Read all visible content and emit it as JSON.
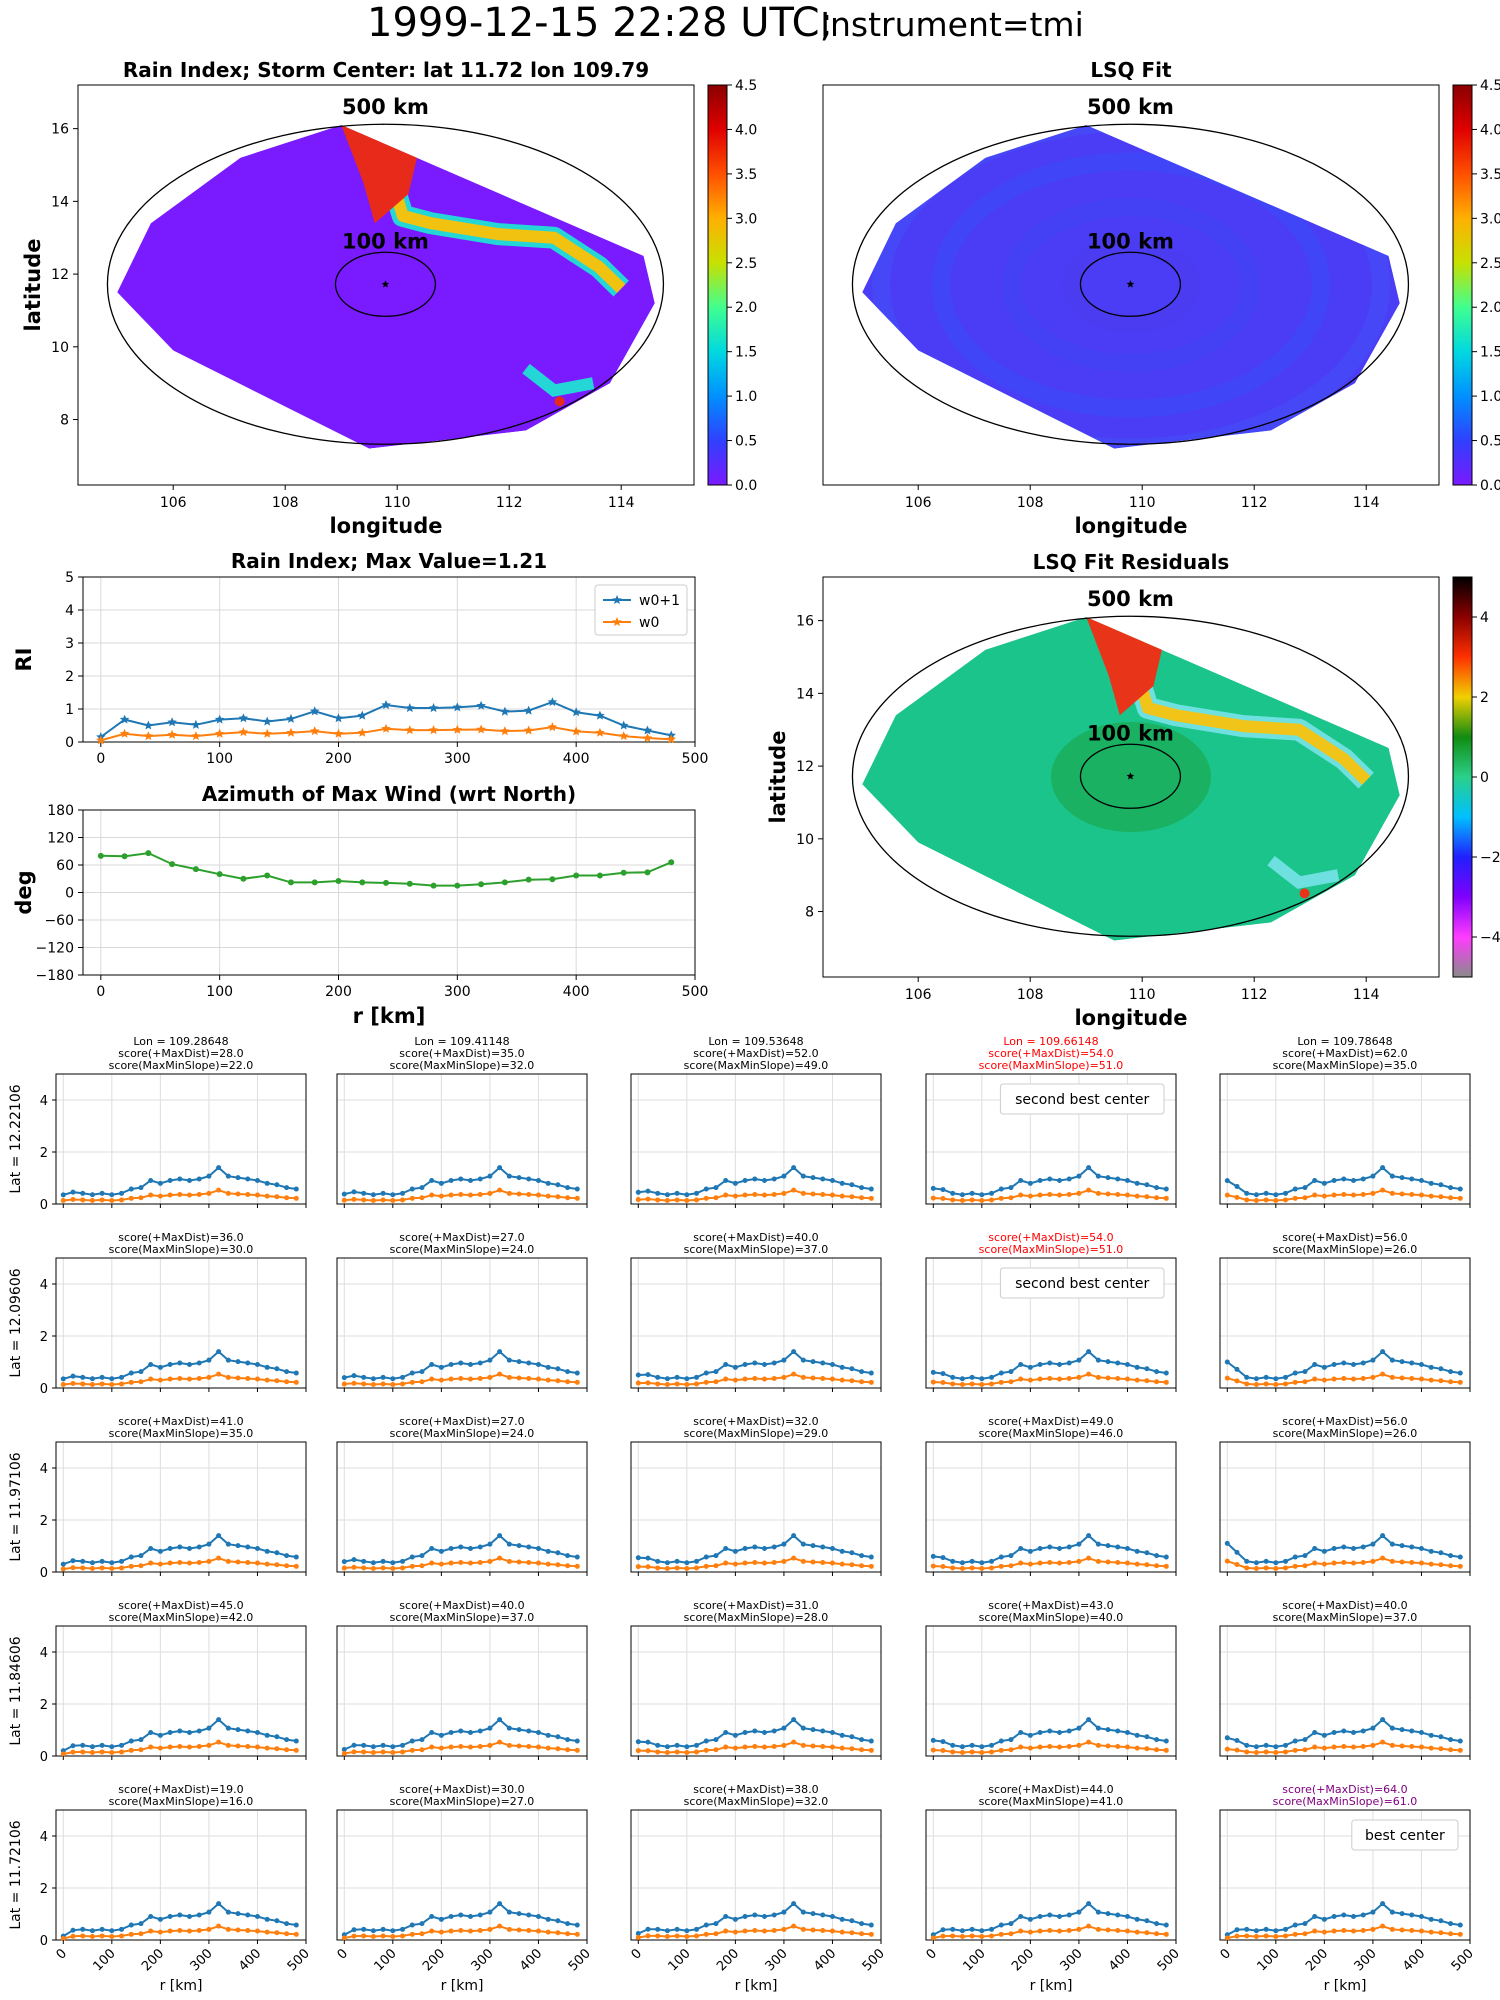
{
  "figure": {
    "title_main": "1999-12-15 22:28 UTC;",
    "title_instr": "Instrument=tmi"
  },
  "maps": [
    {
      "title": "Rain Index; Storm Center: lat 11.72 lon 109.79",
      "xlabel": "longitude",
      "ylabel": "latitude",
      "xticks": [
        "106",
        "108",
        "110",
        "112",
        "114"
      ],
      "yticks": [
        "8",
        "10",
        "12",
        "14",
        "16"
      ],
      "ring_labels": [
        "500 km",
        "100 km"
      ],
      "colorbar_ticks": [
        "0.0",
        "0.5",
        "1.0",
        "1.5",
        "2.0",
        "2.5",
        "3.0",
        "3.5",
        "4.0",
        "4.5"
      ],
      "field_color": "#7a1aff",
      "colormap": "rainbow"
    },
    {
      "title": "LSQ Fit",
      "xlabel": "longitude",
      "ylabel": "",
      "xticks": [
        "106",
        "108",
        "110",
        "112",
        "114"
      ],
      "yticks": [],
      "ring_labels": [
        "500 km",
        "100 km"
      ],
      "colorbar_ticks": [
        "0.0",
        "0.5",
        "1.0",
        "1.5",
        "2.0",
        "2.5",
        "3.0",
        "3.5",
        "4.0",
        "4.5"
      ],
      "field_color": "#4a3df5",
      "colormap": "rainbow"
    },
    {
      "title": "LSQ Fit Residuals",
      "xlabel": "longitude",
      "ylabel": "latitude",
      "xticks": [
        "106",
        "108",
        "110",
        "112",
        "114"
      ],
      "yticks": [
        "8",
        "10",
        "12",
        "14",
        "16"
      ],
      "ring_labels": [
        "500 km",
        "100 km"
      ],
      "colorbar_ticks": [
        "-4",
        "-2",
        "0",
        "2",
        "4"
      ],
      "field_color": "#1bc48a",
      "colormap": "diverging"
    }
  ],
  "chart_data": [
    {
      "type": "line",
      "title": "Rain Index; Max Value=1.21",
      "ylabel": "RI",
      "xlabel": "",
      "x": [
        0,
        20,
        40,
        60,
        80,
        100,
        120,
        140,
        160,
        180,
        200,
        220,
        240,
        260,
        280,
        300,
        320,
        340,
        360,
        380,
        400,
        420,
        440,
        460,
        480
      ],
      "xticks": [
        "0",
        "100",
        "200",
        "300",
        "400",
        "500"
      ],
      "yticks": [
        "0",
        "1",
        "2",
        "3",
        "4",
        "5"
      ],
      "xlim": [
        -15,
        500
      ],
      "ylim": [
        0,
        5
      ],
      "legend": "top-right",
      "grid": true,
      "series": [
        {
          "name": "w0+1",
          "color": "#1f77b4",
          "marker": "star",
          "values": [
            0.15,
            0.68,
            0.5,
            0.6,
            0.52,
            0.68,
            0.72,
            0.62,
            0.7,
            0.93,
            0.72,
            0.8,
            1.12,
            1.03,
            1.03,
            1.05,
            1.1,
            0.92,
            0.95,
            1.21,
            0.9,
            0.8,
            0.5,
            0.35,
            0.2
          ]
        },
        {
          "name": "w0",
          "color": "#ff7f0e",
          "marker": "star",
          "values": [
            0.05,
            0.25,
            0.18,
            0.22,
            0.18,
            0.25,
            0.3,
            0.25,
            0.28,
            0.33,
            0.25,
            0.28,
            0.4,
            0.36,
            0.36,
            0.37,
            0.38,
            0.33,
            0.35,
            0.45,
            0.32,
            0.28,
            0.18,
            0.12,
            0.08
          ]
        }
      ]
    },
    {
      "type": "line",
      "title": "Azimuth of Max Wind (wrt North)",
      "ylabel": "deg",
      "xlabel": "r [km]",
      "x": [
        0,
        20,
        40,
        60,
        80,
        100,
        120,
        140,
        160,
        180,
        200,
        220,
        240,
        260,
        280,
        300,
        320,
        340,
        360,
        380,
        400,
        420,
        440,
        460,
        480
      ],
      "xticks": [
        "0",
        "100",
        "200",
        "300",
        "400",
        "500"
      ],
      "yticks": [
        "180",
        "120",
        "60",
        "0",
        "−60",
        "−120",
        "−180"
      ],
      "xlim": [
        -15,
        500
      ],
      "ylim": [
        -180,
        180
      ],
      "grid": true,
      "series": [
        {
          "color": "#2ca02c",
          "values": [
            80,
            79,
            86,
            62,
            51,
            40,
            30,
            37,
            22,
            22,
            25,
            22,
            21,
            19,
            15,
            15,
            18,
            22,
            28,
            29,
            37,
            37,
            43,
            44,
            66
          ]
        }
      ]
    },
    {
      "type": "line",
      "grid_panels": true,
      "rows": 5,
      "cols": 5,
      "xlabel": "r [km]",
      "x": [
        0,
        20,
        40,
        60,
        80,
        100,
        120,
        140,
        160,
        180,
        200,
        220,
        240,
        260,
        280,
        300,
        320,
        340,
        360,
        380,
        400,
        420,
        440,
        460,
        480
      ],
      "xticks": [
        "0",
        "100",
        "200",
        "300",
        "400",
        "500"
      ],
      "yticks": [
        "0",
        "2",
        "4"
      ],
      "xlim": [
        -15,
        500
      ],
      "ylim": [
        0,
        5
      ],
      "series_colors": [
        "#1f77b4",
        "#ff7f0e"
      ],
      "row_labels": [
        "Lat = 12.22106",
        "Lat = 12.09606",
        "Lat = 11.97106",
        "Lat = 11.84606",
        "Lat = 11.72106"
      ],
      "panels": [
        {
          "lon": "Lon = 109.28648",
          "s1": "score(+MaxDist)=28.0",
          "s2": "score(MaxMinSlope)=22.0",
          "color": "#000000",
          "note": "",
          "base": 0.25,
          "amp": 1.0
        },
        {
          "lon": "Lon = 109.41148",
          "s1": "score(+MaxDist)=35.0",
          "s2": "score(MaxMinSlope)=32.0",
          "color": "#000000",
          "note": "",
          "base": 0.28,
          "amp": 1.0
        },
        {
          "lon": "Lon = 109.53648",
          "s1": "score(+MaxDist)=52.0",
          "s2": "score(MaxMinSlope)=49.0",
          "color": "#000000",
          "note": "",
          "base": 0.35,
          "amp": 1.0
        },
        {
          "lon": "Lon = 109.66148",
          "s1": "score(+MaxDist)=54.0",
          "s2": "score(MaxMinSlope)=51.0",
          "color": "#ff0000",
          "note": "second best center",
          "base": 0.5,
          "amp": 1.0
        },
        {
          "lon": "Lon = 109.78648",
          "s1": "score(+MaxDist)=62.0",
          "s2": "score(MaxMinSlope)=35.0",
          "color": "#000000",
          "note": "",
          "base": 0.8,
          "amp": 1.0
        },
        {
          "lon": "",
          "s1": "score(+MaxDist)=36.0",
          "s2": "score(MaxMinSlope)=30.0",
          "color": "#000000",
          "note": "",
          "base": 0.25,
          "amp": 1.0
        },
        {
          "lon": "",
          "s1": "score(+MaxDist)=27.0",
          "s2": "score(MaxMinSlope)=24.0",
          "color": "#000000",
          "note": "",
          "base": 0.3,
          "amp": 1.0
        },
        {
          "lon": "",
          "s1": "score(+MaxDist)=40.0",
          "s2": "score(MaxMinSlope)=37.0",
          "color": "#000000",
          "note": "",
          "base": 0.4,
          "amp": 1.0
        },
        {
          "lon": "",
          "s1": "score(+MaxDist)=54.0",
          "s2": "score(MaxMinSlope)=51.0",
          "color": "#ff0000",
          "note": "second best center",
          "base": 0.5,
          "amp": 1.0
        },
        {
          "lon": "",
          "s1": "score(+MaxDist)=56.0",
          "s2": "score(MaxMinSlope)=26.0",
          "color": "#000000",
          "note": "",
          "base": 0.9,
          "amp": 1.0
        },
        {
          "lon": "",
          "s1": "score(+MaxDist)=41.0",
          "s2": "score(MaxMinSlope)=35.0",
          "color": "#000000",
          "note": "",
          "base": 0.2,
          "amp": 1.0
        },
        {
          "lon": "",
          "s1": "score(+MaxDist)=27.0",
          "s2": "score(MaxMinSlope)=24.0",
          "color": "#000000",
          "note": "",
          "base": 0.3,
          "amp": 1.0
        },
        {
          "lon": "",
          "s1": "score(+MaxDist)=32.0",
          "s2": "score(MaxMinSlope)=29.0",
          "color": "#000000",
          "note": "",
          "base": 0.45,
          "amp": 1.0
        },
        {
          "lon": "",
          "s1": "score(+MaxDist)=49.0",
          "s2": "score(MaxMinSlope)=46.0",
          "color": "#000000",
          "note": "",
          "base": 0.5,
          "amp": 1.0
        },
        {
          "lon": "",
          "s1": "score(+MaxDist)=56.0",
          "s2": "score(MaxMinSlope)=26.0",
          "color": "#000000",
          "note": "",
          "base": 1.0,
          "amp": 1.0
        },
        {
          "lon": "",
          "s1": "score(+MaxDist)=45.0",
          "s2": "score(MaxMinSlope)=42.0",
          "color": "#000000",
          "note": "",
          "base": 0.1,
          "amp": 1.0
        },
        {
          "lon": "",
          "s1": "score(+MaxDist)=40.0",
          "s2": "score(MaxMinSlope)=37.0",
          "color": "#000000",
          "note": "",
          "base": 0.15,
          "amp": 1.0
        },
        {
          "lon": "",
          "s1": "score(+MaxDist)=31.0",
          "s2": "score(MaxMinSlope)=28.0",
          "color": "#000000",
          "note": "",
          "base": 0.45,
          "amp": 1.0
        },
        {
          "lon": "",
          "s1": "score(+MaxDist)=43.0",
          "s2": "score(MaxMinSlope)=40.0",
          "color": "#000000",
          "note": "",
          "base": 0.5,
          "amp": 1.0
        },
        {
          "lon": "",
          "s1": "score(+MaxDist)=40.0",
          "s2": "score(MaxMinSlope)=37.0",
          "color": "#000000",
          "note": "",
          "base": 0.6,
          "amp": 1.0
        },
        {
          "lon": "",
          "s1": "score(+MaxDist)=19.0",
          "s2": "score(MaxMinSlope)=16.0",
          "color": "#000000",
          "note": "",
          "base": 0.05,
          "amp": 1.0
        },
        {
          "lon": "",
          "s1": "score(+MaxDist)=30.0",
          "s2": "score(MaxMinSlope)=27.0",
          "color": "#000000",
          "note": "",
          "base": 0.1,
          "amp": 1.0
        },
        {
          "lon": "",
          "s1": "score(+MaxDist)=38.0",
          "s2": "score(MaxMinSlope)=32.0",
          "color": "#000000",
          "note": "",
          "base": 0.15,
          "amp": 1.0
        },
        {
          "lon": "",
          "s1": "score(+MaxDist)=44.0",
          "s2": "score(MaxMinSlope)=41.0",
          "color": "#000000",
          "note": "",
          "base": 0.1,
          "amp": 1.0
        },
        {
          "lon": "",
          "s1": "score(+MaxDist)=64.0",
          "s2": "score(MaxMinSlope)=61.0",
          "color": "#800080",
          "note": "best center",
          "base": 0.1,
          "amp": 1.0
        }
      ]
    }
  ]
}
